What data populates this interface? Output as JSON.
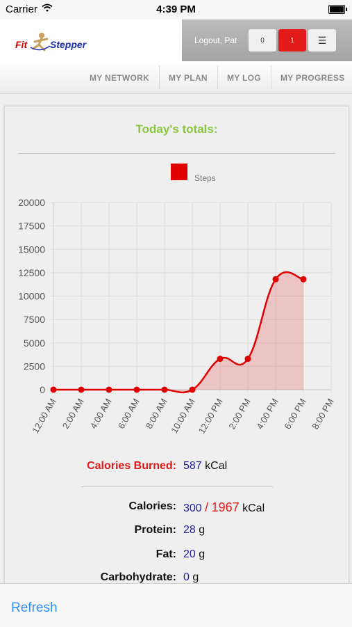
{
  "status_bar": {
    "carrier": "Carrier",
    "time": "4:39 PM"
  },
  "header": {
    "logo_part1": "Fit",
    "logo_part2": "Stepper",
    "logout_label": "Logout, Pat",
    "messages_count": "0",
    "alerts_count": "1",
    "menu_icon": "☰"
  },
  "nav": {
    "items": [
      "MY NETWORK",
      "MY PLAN",
      "MY LOG",
      "MY PROGRESS"
    ]
  },
  "totals_title": "Today's totals:",
  "chart_data": {
    "type": "line",
    "series": [
      {
        "name": "Steps",
        "color": "#e00000",
        "x": [
          "12:00 AM",
          "2:00 AM",
          "4:00 AM",
          "6:00 AM",
          "8:00 AM",
          "10:00 AM",
          "12:00 PM",
          "2:00 PM",
          "4:00 PM",
          "6:00 PM"
        ],
        "values": [
          0,
          0,
          0,
          0,
          0,
          0,
          3300,
          3300,
          11800,
          11800
        ]
      }
    ],
    "categories": [
      "12:00 AM",
      "2:00 AM",
      "4:00 AM",
      "6:00 AM",
      "8:00 AM",
      "10:00 AM",
      "12:00 PM",
      "2:00 PM",
      "4:00 PM",
      "6:00 PM",
      "8:00 PM"
    ],
    "yticks": [
      "0",
      "2500",
      "5000",
      "7500",
      "10000",
      "12500",
      "15000",
      "17500",
      "20000"
    ],
    "ylim": [
      0,
      20000
    ],
    "area_fill": true,
    "grid": true,
    "legend": "top-center"
  },
  "stats": {
    "calories_burned_label": "Calories Burned:",
    "calories_burned_value": "587",
    "calories_burned_unit": "kCal",
    "calories_label": "Calories:",
    "calories_value": "300",
    "calories_sep": "/",
    "calories_goal": "1967",
    "calories_unit": "kCal",
    "protein_label": "Protein:",
    "protein_value": "28",
    "protein_unit": "g",
    "fat_label": "Fat:",
    "fat_value": "20",
    "fat_unit": "g",
    "carb_label": "Carbohydrate:",
    "carb_value": "0",
    "carb_unit": "g"
  },
  "toolbar": {
    "refresh_label": "Refresh"
  }
}
